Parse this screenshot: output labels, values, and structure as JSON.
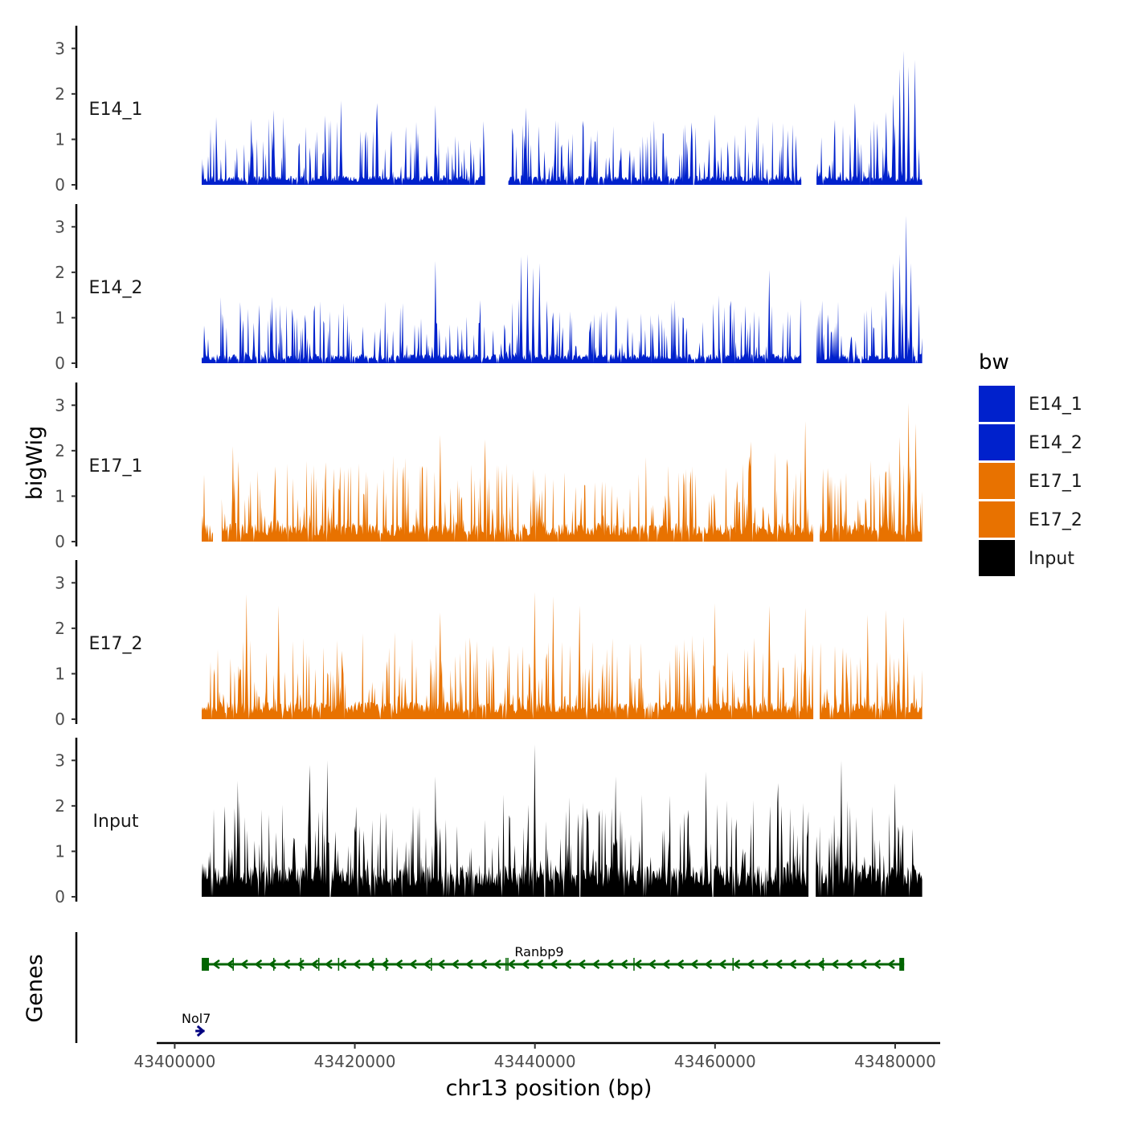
{
  "chart_data": {
    "type": "area",
    "title": "",
    "xlabel": "chr13 position (bp)",
    "ylabel": "bigWig",
    "genes_label": "Genes",
    "xlim": [
      43398000,
      43485000
    ],
    "ylim": [
      0,
      3.5
    ],
    "data_range": [
      43403000,
      43483000
    ],
    "x_ticks": [
      43400000,
      43420000,
      43440000,
      43460000,
      43480000
    ],
    "x_tick_labels": [
      "43400000",
      "43420000",
      "43440000",
      "43460000",
      "43480000"
    ],
    "y_ticks": [
      0,
      1,
      2,
      3
    ],
    "y_tick_labels": [
      "0",
      "1",
      "2",
      "3"
    ],
    "legend_title": "bw",
    "legend_position": "right",
    "tracks": [
      {
        "name": "E14_1",
        "color": "#0021CC",
        "seed": 11,
        "base": 0.16,
        "spike_max": 1.35,
        "gaps": [
          [
            43434500,
            43437000
          ],
          [
            43469600,
            43471200
          ]
        ],
        "peaks": [
          {
            "x": 43408500,
            "y": 1.45
          },
          {
            "x": 43411000,
            "y": 1.65
          },
          {
            "x": 43418500,
            "y": 1.85
          },
          {
            "x": 43422500,
            "y": 1.8
          },
          {
            "x": 43429000,
            "y": 1.75
          },
          {
            "x": 43439000,
            "y": 1.7
          },
          {
            "x": 43460000,
            "y": 1.55
          },
          {
            "x": 43475500,
            "y": 1.8
          },
          {
            "x": 43478000,
            "y": 1.35
          },
          {
            "x": 43479000,
            "y": 1.6
          },
          {
            "x": 43479800,
            "y": 2.0
          },
          {
            "x": 43480500,
            "y": 2.55
          },
          {
            "x": 43481000,
            "y": 2.95
          },
          {
            "x": 43481500,
            "y": 2.6
          },
          {
            "x": 43482200,
            "y": 2.75
          }
        ]
      },
      {
        "name": "E14_2",
        "color": "#0021CC",
        "seed": 23,
        "base": 0.16,
        "spike_max": 1.3,
        "gaps": [
          [
            43469600,
            43471200
          ]
        ],
        "peaks": [
          {
            "x": 43429000,
            "y": 2.25
          },
          {
            "x": 43438500,
            "y": 2.35
          },
          {
            "x": 43439200,
            "y": 2.4
          },
          {
            "x": 43439800,
            "y": 2.1
          },
          {
            "x": 43440500,
            "y": 2.2
          },
          {
            "x": 43466000,
            "y": 2.05
          },
          {
            "x": 43471200,
            "y": 2.15
          },
          {
            "x": 43479000,
            "y": 1.6
          },
          {
            "x": 43479800,
            "y": 2.2
          },
          {
            "x": 43480500,
            "y": 2.4
          },
          {
            "x": 43481200,
            "y": 3.25
          },
          {
            "x": 43481800,
            "y": 2.2
          }
        ]
      },
      {
        "name": "E17_1",
        "color": "#E87200",
        "seed": 37,
        "base": 0.32,
        "spike_max": 1.55,
        "gaps": [
          [
            43404300,
            43405200
          ],
          [
            43471000,
            43471600
          ]
        ],
        "peaks": [
          {
            "x": 43406500,
            "y": 2.1
          },
          {
            "x": 43429500,
            "y": 2.35
          },
          {
            "x": 43434500,
            "y": 2.25
          },
          {
            "x": 43464000,
            "y": 2.2
          },
          {
            "x": 43470000,
            "y": 2.65
          },
          {
            "x": 43479000,
            "y": 1.55
          },
          {
            "x": 43480500,
            "y": 2.3
          },
          {
            "x": 43481500,
            "y": 3.05
          },
          {
            "x": 43482300,
            "y": 2.6
          }
        ]
      },
      {
        "name": "E17_2",
        "color": "#E87200",
        "seed": 51,
        "base": 0.3,
        "spike_max": 1.55,
        "gaps": [
          [
            43471000,
            43471600
          ]
        ],
        "peaks": [
          {
            "x": 43408000,
            "y": 2.75
          },
          {
            "x": 43411500,
            "y": 2.5
          },
          {
            "x": 43429500,
            "y": 2.35
          },
          {
            "x": 43440000,
            "y": 2.8
          },
          {
            "x": 43442000,
            "y": 2.7
          },
          {
            "x": 43445000,
            "y": 2.5
          },
          {
            "x": 43460000,
            "y": 2.55
          },
          {
            "x": 43466000,
            "y": 2.5
          },
          {
            "x": 43470000,
            "y": 2.45
          },
          {
            "x": 43477000,
            "y": 2.3
          },
          {
            "x": 43479000,
            "y": 2.4
          },
          {
            "x": 43481000,
            "y": 2.25
          }
        ]
      },
      {
        "name": "Input",
        "color": "#000000",
        "seed": 73,
        "base": 0.55,
        "spike_max": 1.65,
        "gaps": [
          [
            43470400,
            43471100
          ]
        ],
        "peaks": [
          {
            "x": 43407000,
            "y": 2.55
          },
          {
            "x": 43415000,
            "y": 2.9
          },
          {
            "x": 43417000,
            "y": 3.0
          },
          {
            "x": 43429000,
            "y": 2.65
          },
          {
            "x": 43440000,
            "y": 3.35
          },
          {
            "x": 43449000,
            "y": 2.65
          },
          {
            "x": 43459000,
            "y": 2.75
          },
          {
            "x": 43467000,
            "y": 2.5
          },
          {
            "x": 43474000,
            "y": 3.0
          },
          {
            "x": 43480000,
            "y": 2.5
          }
        ]
      }
    ],
    "genes": [
      {
        "name": "Ranbp9",
        "start": 43403000,
        "end": 43481000,
        "strand": "-",
        "color": "#006400",
        "exons": [
          43403000,
          43406500,
          43411000,
          43414000,
          43416000,
          43418200,
          43422000,
          43423500,
          43428500,
          43436800,
          43437000,
          43451000,
          43462000,
          43472000,
          43481000
        ]
      },
      {
        "name": "Nol7",
        "start": 43402300,
        "end": 43403300,
        "strand": "+",
        "color": "#000080",
        "exons": []
      }
    ]
  }
}
